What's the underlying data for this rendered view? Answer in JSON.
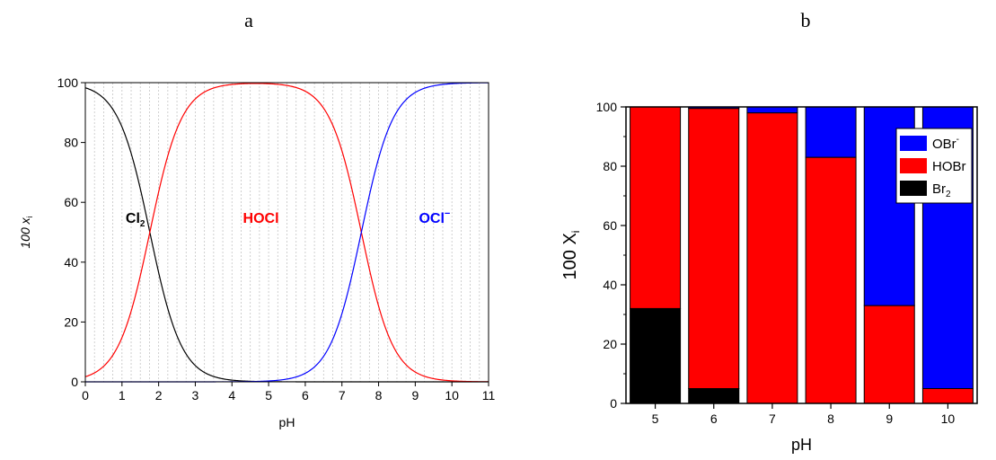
{
  "panels": {
    "a": "a",
    "b": "b"
  },
  "chart_data": [
    {
      "type": "line",
      "panel": "a",
      "xlabel": "pH",
      "ylabel": "100 x",
      "ylabel_sub": "i",
      "xlim": [
        0,
        11
      ],
      "ylim": [
        0,
        100
      ],
      "xticks": [
        "0",
        "1",
        "2",
        "3",
        "4",
        "5",
        "6",
        "7",
        "8",
        "9",
        "10",
        "11"
      ],
      "yticks": [
        "0",
        "20",
        "40",
        "60",
        "80",
        "100"
      ],
      "grid": "vertical dotted every 0.25 pH",
      "pKa": [
        1.76,
        7.53
      ],
      "series": [
        {
          "name": "Cl",
          "name_sub": "2",
          "label_pos": [
            1.1,
            55
          ],
          "color": "#000000",
          "x": [
            0,
            0.5,
            1,
            1.5,
            2,
            2.5,
            3,
            3.5,
            4,
            4.5,
            5,
            5.5,
            6,
            6.5,
            7,
            7.5,
            8,
            8.5,
            9,
            9.5,
            10,
            10.5,
            11
          ],
          "y": [
            98.3,
            94.8,
            85.2,
            64.6,
            36.5,
            15.4,
            5.5,
            1.8,
            0.6,
            0.2,
            0.06,
            0.02,
            0,
            0,
            0,
            0,
            0,
            0,
            0,
            0,
            0,
            0,
            0
          ]
        },
        {
          "name": "HOCl",
          "name_sub": "",
          "label_pos": [
            4.3,
            55
          ],
          "color": "#ff0000",
          "x": [
            0,
            0.5,
            1,
            1.5,
            2,
            2.5,
            3,
            3.5,
            4,
            4.5,
            5,
            5.5,
            6,
            6.5,
            7,
            7.5,
            8,
            8.5,
            9,
            9.5,
            10,
            10.5,
            11
          ],
          "y": [
            1.7,
            5.2,
            14.8,
            35.4,
            63.5,
            84.6,
            94.5,
            98.2,
            99.4,
            99.7,
            99.6,
            98.9,
            96.7,
            90.1,
            74.5,
            48.4,
            25.2,
            9.6,
            3.3,
            1.1,
            0.3,
            0.1,
            0.03
          ]
        },
        {
          "name": "OCl",
          "name_sub": "",
          "name_sup": "−",
          "label_pos": [
            9.1,
            55
          ],
          "color": "#0000ff",
          "x": [
            0,
            0.5,
            1,
            1.5,
            2,
            2.5,
            3,
            3.5,
            4,
            4.5,
            5,
            5.5,
            6,
            6.5,
            7,
            7.5,
            8,
            8.5,
            9,
            9.5,
            10,
            10.5,
            11
          ],
          "y": [
            0,
            0,
            0,
            0,
            0,
            0,
            0,
            0,
            0,
            0.1,
            0.3,
            1.1,
            3.3,
            9.9,
            25.5,
            51.6,
            74.8,
            90.4,
            96.7,
            98.9,
            99.7,
            99.9,
            100
          ]
        }
      ]
    },
    {
      "type": "bar",
      "stacked": true,
      "panel": "b",
      "xlabel": "pH",
      "ylabel": "100 X",
      "ylabel_sub": "i",
      "ylim": [
        0,
        100
      ],
      "yticks": [
        "0",
        "20",
        "40",
        "60",
        "80",
        "100"
      ],
      "categories": [
        "5",
        "6",
        "7",
        "8",
        "9",
        "10"
      ],
      "legend_position": "top-right",
      "series": [
        {
          "name": "Br",
          "name_sub": "2",
          "name_sup": "",
          "color": "#000000",
          "values": [
            32,
            5,
            0,
            0,
            0,
            0
          ]
        },
        {
          "name": "HOBr",
          "name_sub": "",
          "name_sup": "",
          "color": "#ff0000",
          "values": [
            68,
            94.5,
            98,
            83,
            33,
            5
          ]
        },
        {
          "name": "OBr",
          "name_sub": "",
          "name_sup": "-",
          "color": "#0000ff",
          "values": [
            0,
            0.5,
            2,
            17,
            67,
            95
          ]
        }
      ]
    }
  ]
}
